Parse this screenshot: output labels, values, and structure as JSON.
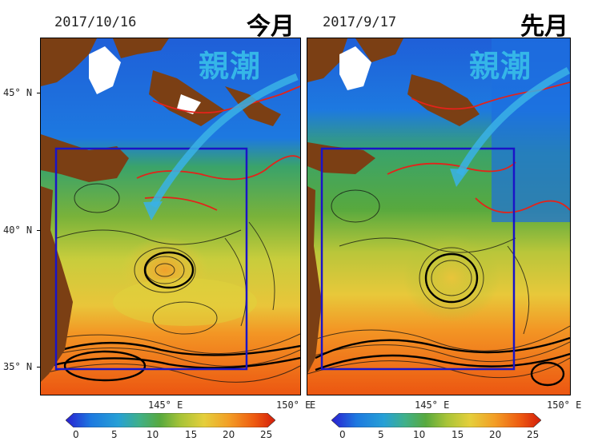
{
  "left_panel": {
    "date": "2017/10/16",
    "tag": "今月",
    "current_label": "親潮"
  },
  "right_panel": {
    "date": "2017/9/17",
    "tag": "先月",
    "current_label": "親潮"
  },
  "axes": {
    "lat_labels": [
      "45° N",
      "40° N",
      "35° N"
    ],
    "lon_label_left": "145° E",
    "lon_label_right": "150° E",
    "lon_label_right_panel_start": "E"
  },
  "colorbar": {
    "ticks": [
      "0",
      "5",
      "10",
      "15",
      "20",
      "25"
    ],
    "range": [
      0,
      25
    ],
    "colors": [
      "#2a1ed1",
      "#1d79e0",
      "#26a0d6",
      "#3fb08a",
      "#58a93e",
      "#a9c437",
      "#e5cf3b",
      "#f39d25",
      "#ee5a10",
      "#d31d0b"
    ]
  },
  "colors": {
    "land": "#7b3f14",
    "box": "#1a14c8",
    "contour": "#e3231a",
    "arrow": "#3ab2e6"
  }
}
